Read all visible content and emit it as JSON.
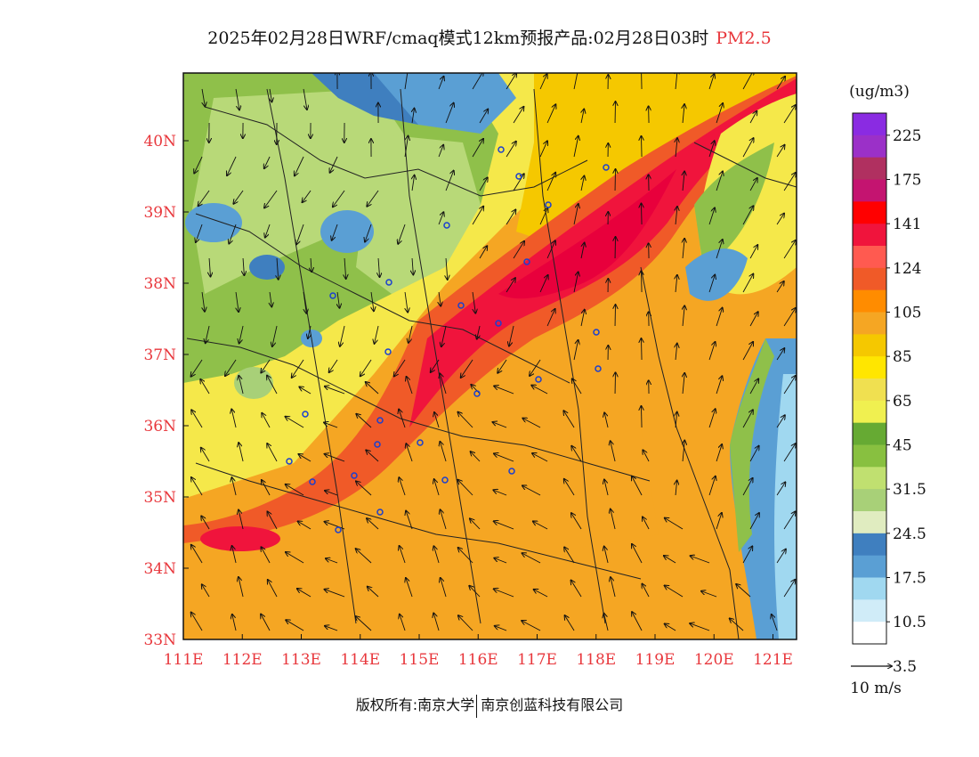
{
  "title": {
    "main": "2025年02月28日WRF/cmaq模式12km预报产品:02月28日03时",
    "variable": "PM2.5"
  },
  "legend": {
    "unit": "(ug/m3)",
    "labels": [
      "225",
      "175",
      "141",
      "124",
      "105",
      "85",
      "65",
      "45",
      "31.5",
      "24.5",
      "17.5",
      "10.5",
      "3.5"
    ],
    "colors": [
      "#8a2be2",
      "#9b30c8",
      "#b03060",
      "#c41470",
      "#ff0000",
      "#f0143c",
      "#ff5a50",
      "#f05a28",
      "#ff8c00",
      "#f5a623",
      "#f5c800",
      "#ffe600",
      "#f0e050",
      "#f0f050",
      "#66aa33",
      "#88c040",
      "#c0e070",
      "#a8d078",
      "#e0ecc0",
      "#3f7fbf",
      "#5a9fd4",
      "#a0d8f0",
      "#d0ecf8",
      "#ffffff"
    ],
    "wind_reference": "10 m/s"
  },
  "axes": {
    "x_ticks": [
      "111E",
      "112E",
      "113E",
      "114E",
      "115E",
      "116E",
      "117E",
      "118E",
      "119E",
      "120E",
      "121E"
    ],
    "y_ticks": [
      "40N",
      "39N",
      "38N",
      "37N",
      "36N",
      "35N",
      "34N",
      "33N"
    ],
    "lon_range": [
      111,
      121.4
    ],
    "lat_range": [
      33,
      40.95
    ]
  },
  "footer": {
    "copyright": "版权所有:南京大学",
    "company": "南京创蓝科技有限公司"
  }
}
